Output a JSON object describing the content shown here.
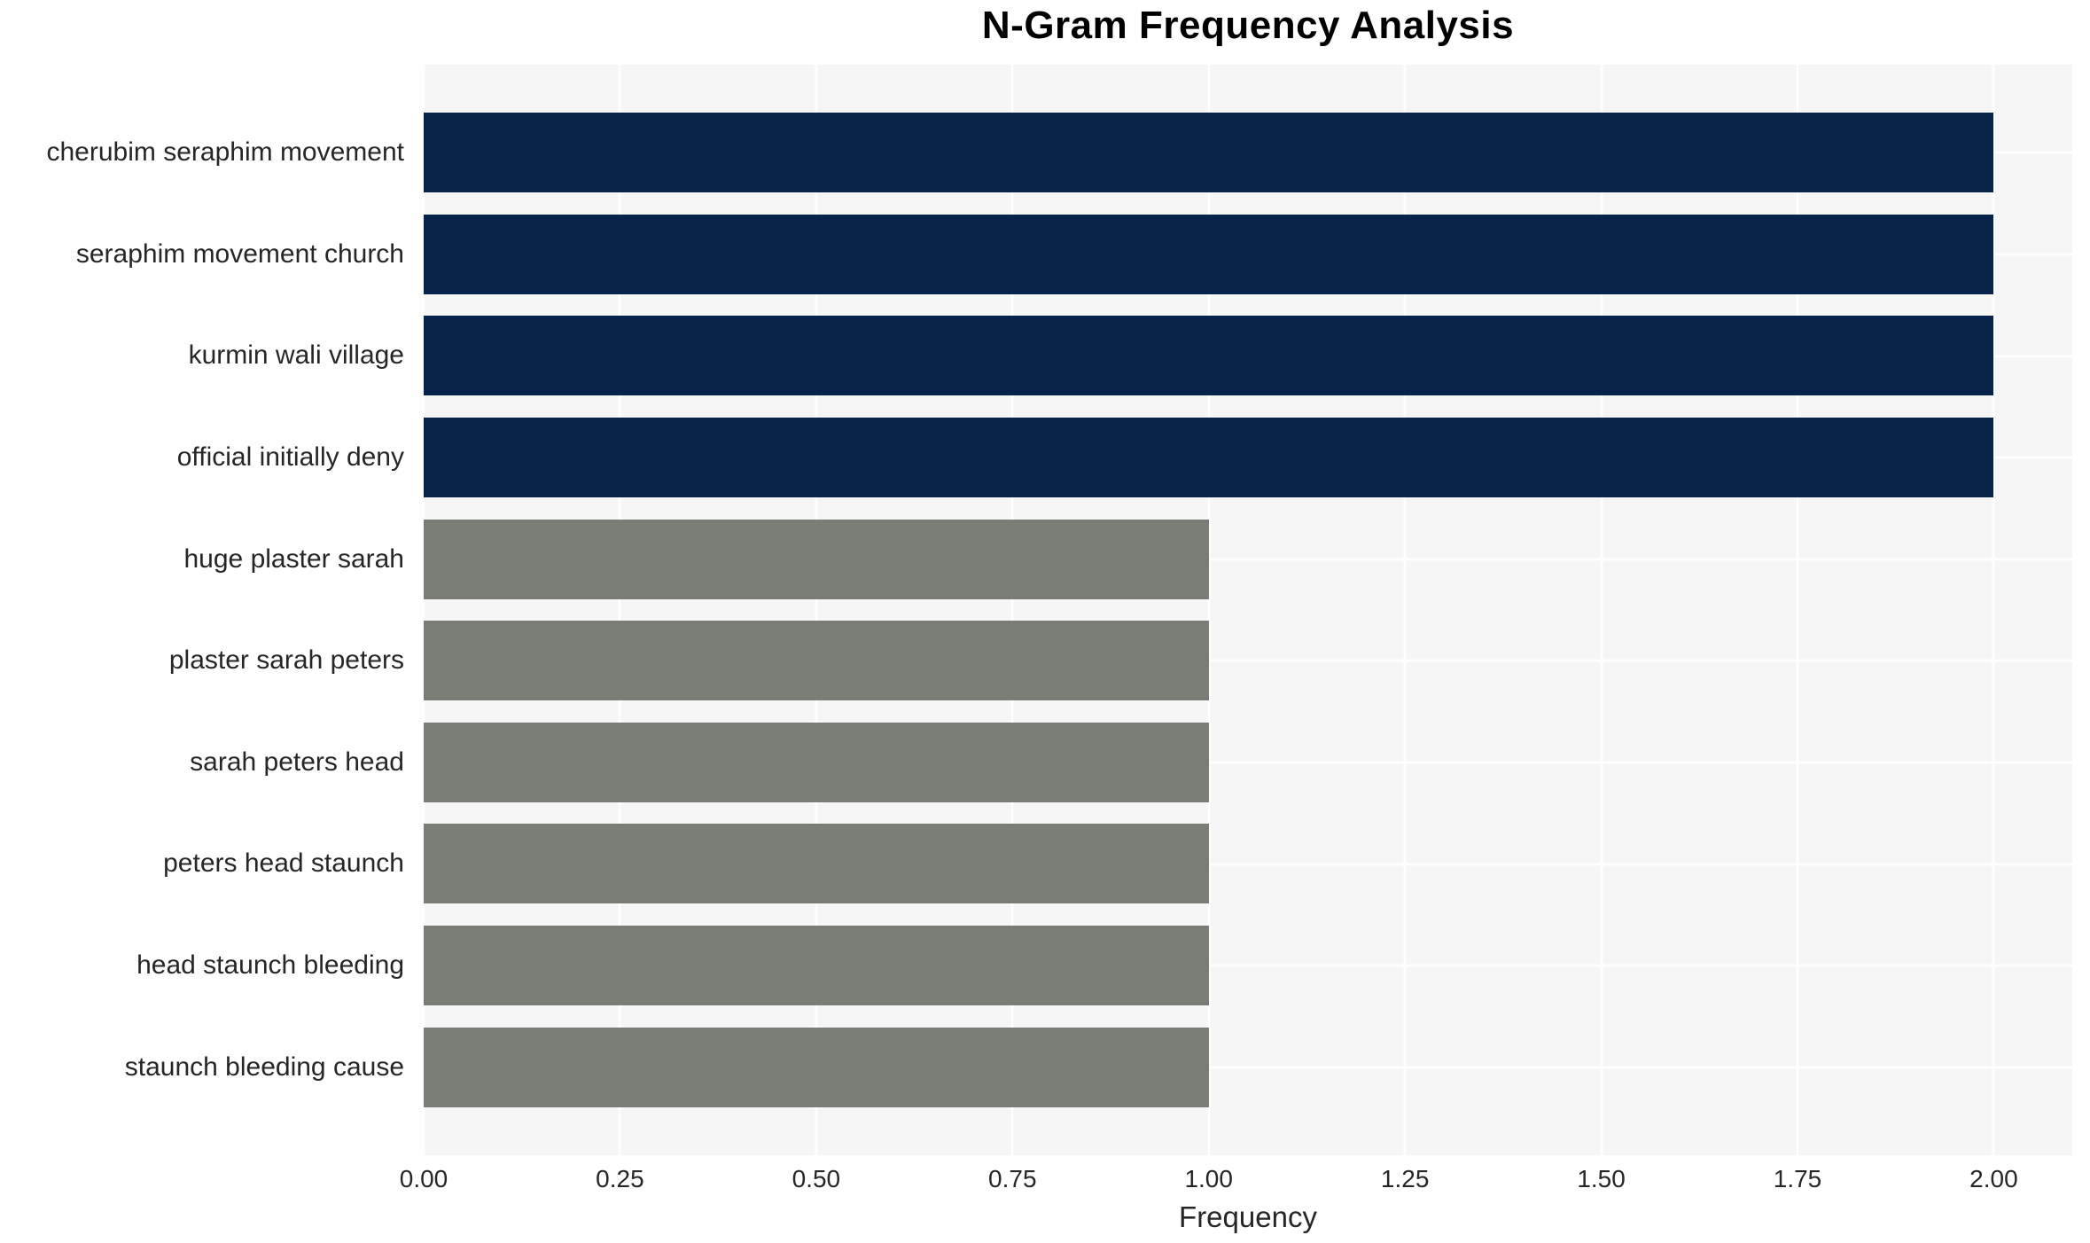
{
  "chart_data": {
    "type": "bar",
    "orientation": "horizontal",
    "title": "N-Gram Frequency Analysis",
    "xlabel": "Frequency",
    "ylabel": "",
    "categories": [
      "cherubim seraphim movement",
      "seraphim movement church",
      "kurmin wali village",
      "official initially deny",
      "huge plaster sarah",
      "plaster sarah peters",
      "sarah peters head",
      "peters head staunch",
      "head staunch bleeding",
      "staunch bleeding cause"
    ],
    "values": [
      2,
      2,
      2,
      2,
      1,
      1,
      1,
      1,
      1,
      1
    ],
    "bar_colors": [
      "#08234a",
      "#08234a",
      "#08234a",
      "#08234a",
      "#7a7c76",
      "#7a7c76",
      "#7a7c76",
      "#7a7c76",
      "#7a7c76",
      "#7a7c76"
    ],
    "xlim": [
      0,
      2.1
    ],
    "xticks": [
      0,
      0.25,
      0.5,
      0.75,
      1.0,
      1.25,
      1.5,
      1.75,
      2.0
    ],
    "xtick_labels": [
      "0.00",
      "0.25",
      "0.50",
      "0.75",
      "1.00",
      "1.25",
      "1.50",
      "1.75",
      "2.00"
    ],
    "grid": {
      "vertical": true,
      "horizontal": true,
      "color": "#ffffff",
      "background": "#f6f6f6"
    },
    "legend": "none",
    "colors": {
      "bar_high": "#08234a",
      "bar_low": "#7a7c76",
      "plot_background": "#f6f6f6",
      "gridline": "#ffffff",
      "tick_text": "#262626",
      "title_text": "#000000"
    }
  }
}
